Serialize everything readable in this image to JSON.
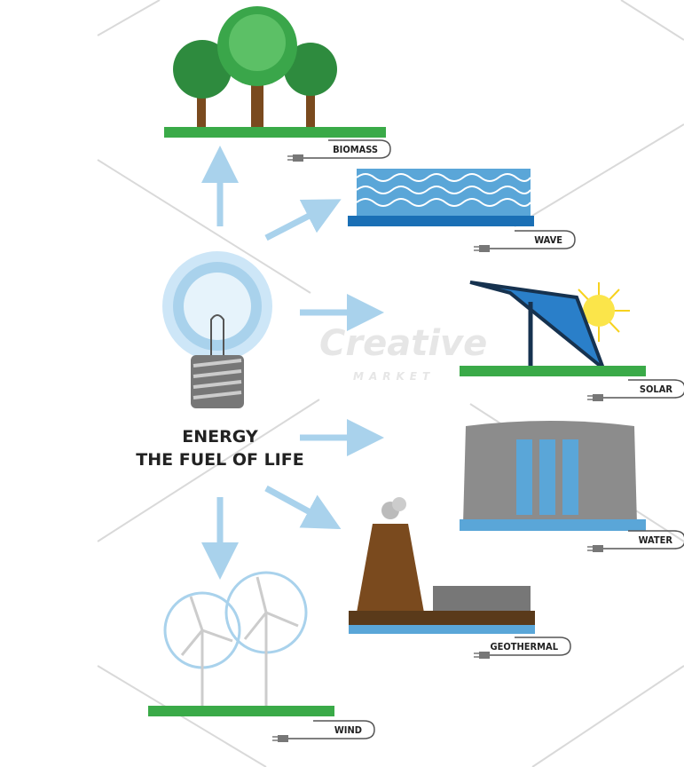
{
  "center": {
    "title": "ENERGY",
    "subtitle": "THE FUEL OF LIFE"
  },
  "nodes": [
    {
      "label": "BIOMASS"
    },
    {
      "label": "WAVE"
    },
    {
      "label": "SOLAR"
    },
    {
      "label": "WATER"
    },
    {
      "label": "GEOTHERMAL"
    },
    {
      "label": "WIND"
    }
  ],
  "watermark": {
    "brand": "Creative",
    "sub": "MARKET"
  }
}
